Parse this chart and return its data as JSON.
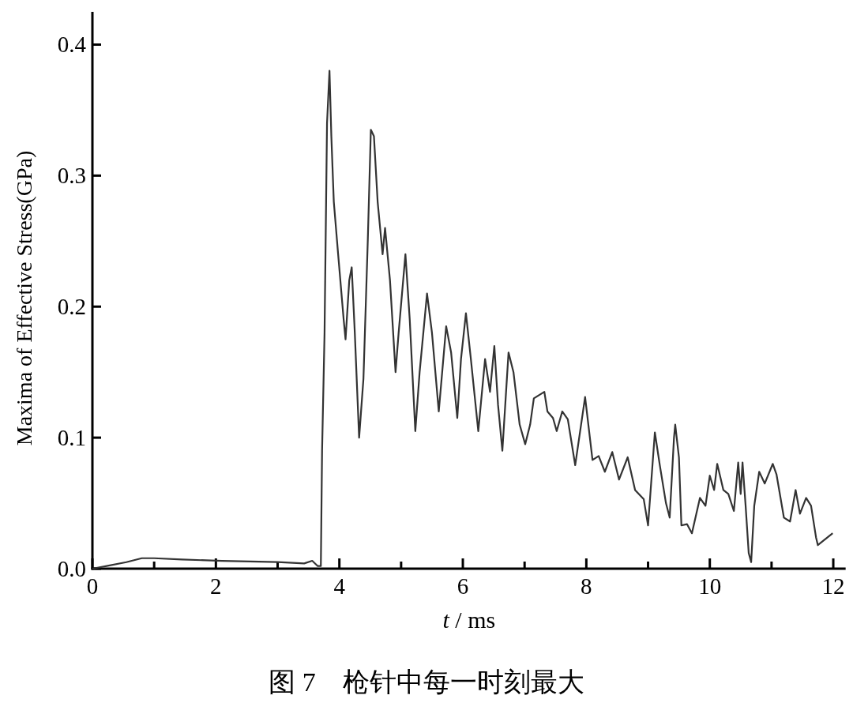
{
  "chart_data": {
    "type": "line",
    "xlabel": "*t* / ms",
    "ylabel": "Maxima of Effective Stress(GPa)",
    "annotations": [
      "图 7　枪针中每一时刻最大"
    ],
    "xlim": [
      0,
      12.2
    ],
    "ylim": [
      0,
      0.425
    ],
    "xticks": [
      0,
      {
        "value": 1,
        "label": null
      },
      2,
      {
        "value": 3,
        "label": null
      },
      4,
      {
        "value": 5,
        "label": null
      },
      6,
      {
        "value": 7,
        "label": null
      },
      8,
      {
        "value": 9,
        "label": null
      },
      10,
      {
        "value": 11,
        "label": null
      },
      12
    ],
    "yticks": [
      {
        "value": 0,
        "label": "0.0"
      },
      0.1,
      0.2,
      0.3,
      0.4
    ],
    "grid": false,
    "marker": "none",
    "line_style": "solid",
    "series": [
      {
        "color": "#333333",
        "x": [
          0,
          0.23,
          0.55,
          0.8,
          1.0,
          1.45,
          2.1,
          3.0,
          3.43,
          3.56,
          3.65,
          3.7,
          3.72,
          3.76,
          3.8,
          3.84,
          3.87,
          3.91,
          3.98,
          4.07,
          4.1,
          4.16,
          4.2,
          4.25,
          4.32,
          4.39,
          4.46,
          4.51,
          4.56,
          4.62,
          4.7,
          4.74,
          4.82,
          4.91,
          4.96,
          5.07,
          5.14,
          5.23,
          5.3,
          5.42,
          5.5,
          5.61,
          5.73,
          5.81,
          5.91,
          5.97,
          6.05,
          6.13,
          6.25,
          6.36,
          6.44,
          6.51,
          6.57,
          6.64,
          6.74,
          6.82,
          6.92,
          7.01,
          7.09,
          7.15,
          7.32,
          7.37,
          7.46,
          7.52,
          7.61,
          7.7,
          7.82,
          7.98,
          8.1,
          8.2,
          8.3,
          8.42,
          8.53,
          8.67,
          8.79,
          8.93,
          9.0,
          9.11,
          9.19,
          9.29,
          9.35,
          9.42,
          9.44,
          9.5,
          9.54,
          9.63,
          9.71,
          9.84,
          9.93,
          10.0,
          10.07,
          10.12,
          10.22,
          10.3,
          10.39,
          10.46,
          10.5,
          10.53,
          10.58,
          10.63,
          10.67,
          10.72,
          10.8,
          10.89,
          11.02,
          11.08,
          11.2,
          11.3,
          11.39,
          11.46,
          11.56,
          11.64,
          11.72,
          11.75,
          11.83,
          11.99
        ],
        "values": [
          0,
          0.002,
          0.005,
          0.008,
          0.008,
          0.007,
          0.006,
          0.005,
          0.004,
          0.006,
          0.002,
          0.002,
          0.09,
          0.18,
          0.34,
          0.38,
          0.33,
          0.28,
          0.24,
          0.19,
          0.175,
          0.22,
          0.23,
          0.18,
          0.1,
          0.145,
          0.25,
          0.335,
          0.33,
          0.28,
          0.24,
          0.26,
          0.22,
          0.15,
          0.18,
          0.24,
          0.19,
          0.105,
          0.15,
          0.21,
          0.18,
          0.12,
          0.185,
          0.165,
          0.115,
          0.16,
          0.195,
          0.16,
          0.105,
          0.16,
          0.135,
          0.17,
          0.125,
          0.09,
          0.165,
          0.15,
          0.11,
          0.095,
          0.11,
          0.13,
          0.135,
          0.12,
          0.115,
          0.105,
          0.12,
          0.114,
          0.079,
          0.131,
          0.083,
          0.086,
          0.074,
          0.089,
          0.068,
          0.085,
          0.06,
          0.053,
          0.033,
          0.104,
          0.079,
          0.05,
          0.039,
          0.1,
          0.11,
          0.085,
          0.033,
          0.034,
          0.027,
          0.054,
          0.048,
          0.071,
          0.06,
          0.08,
          0.06,
          0.057,
          0.044,
          0.081,
          0.057,
          0.081,
          0.048,
          0.012,
          0.005,
          0.048,
          0.074,
          0.065,
          0.08,
          0.072,
          0.039,
          0.036,
          0.06,
          0.042,
          0.054,
          0.048,
          0.024,
          0.018,
          0.021,
          0.027
        ]
      }
    ]
  }
}
